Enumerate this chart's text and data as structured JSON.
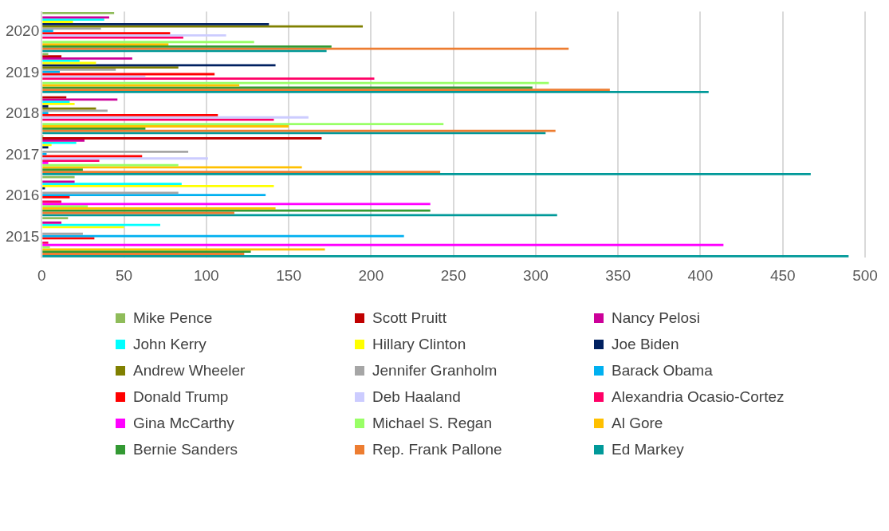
{
  "chart_data": {
    "type": "bar",
    "orientation": "horizontal",
    "categories": [
      "2020",
      "2019",
      "2018",
      "2017",
      "2016",
      "2015"
    ],
    "xlim": [
      0,
      500
    ],
    "xticks": [
      0,
      50,
      100,
      150,
      200,
      250,
      300,
      350,
      400,
      450,
      500
    ],
    "grid": "x",
    "legend": "bottom",
    "series": [
      {
        "name": "Mike Pence",
        "color": "#8fbc5a",
        "values": [
          44,
          4,
          null,
          1,
          20,
          16
        ]
      },
      {
        "name": "Scott Pruitt",
        "color": "#c00000",
        "values": [
          null,
          12,
          15,
          170,
          null,
          null
        ]
      },
      {
        "name": "Nancy Pelosi",
        "color": "#cc0099",
        "values": [
          41,
          55,
          46,
          26,
          20,
          12
        ]
      },
      {
        "name": "John Kerry",
        "color": "#00ffff",
        "values": [
          38,
          23,
          17,
          21,
          85,
          72
        ]
      },
      {
        "name": "Hillary Clinton",
        "color": "#ffff00",
        "values": [
          19,
          33,
          20,
          6,
          141,
          50
        ]
      },
      {
        "name": "Joe Biden",
        "color": "#002060",
        "values": [
          138,
          142,
          4,
          4,
          2,
          null
        ]
      },
      {
        "name": "Andrew Wheeler",
        "color": "#808000",
        "values": [
          195,
          83,
          33,
          null,
          null,
          null
        ]
      },
      {
        "name": "Jennifer Granholm",
        "color": "#a6a6a6",
        "values": [
          36,
          45,
          40,
          89,
          83,
          25
        ]
      },
      {
        "name": "Barack Obama",
        "color": "#00b0f0",
        "values": [
          7,
          11,
          4,
          3,
          136,
          220
        ]
      },
      {
        "name": "Donald Trump",
        "color": "#ff0000",
        "values": [
          78,
          105,
          107,
          61,
          17,
          32
        ]
      },
      {
        "name": "Deb Haaland",
        "color": "#ccccff",
        "values": [
          112,
          63,
          162,
          101,
          null,
          null
        ]
      },
      {
        "name": "Alexandria Ocasio-Cortez",
        "color": "#ff0066",
        "values": [
          86,
          202,
          141,
          35,
          12,
          4
        ]
      },
      {
        "name": "Gina McCarthy",
        "color": "#ff00ff",
        "values": [
          null,
          null,
          null,
          4,
          236,
          414
        ]
      },
      {
        "name": "Michael S. Regan",
        "color": "#99ff66",
        "values": [
          129,
          308,
          244,
          83,
          28,
          5
        ]
      },
      {
        "name": "Al Gore",
        "color": "#ffc000",
        "values": [
          77,
          120,
          150,
          158,
          142,
          172
        ]
      },
      {
        "name": "Bernie Sanders",
        "color": "#339933",
        "values": [
          176,
          298,
          63,
          25,
          236,
          127
        ]
      },
      {
        "name": "Rep. Frank Pallone",
        "color": "#ed7d31",
        "values": [
          320,
          345,
          312,
          242,
          117,
          123
        ]
      },
      {
        "name": "Ed Markey",
        "color": "#009999",
        "values": [
          173,
          405,
          306,
          467,
          313,
          490
        ]
      }
    ]
  }
}
